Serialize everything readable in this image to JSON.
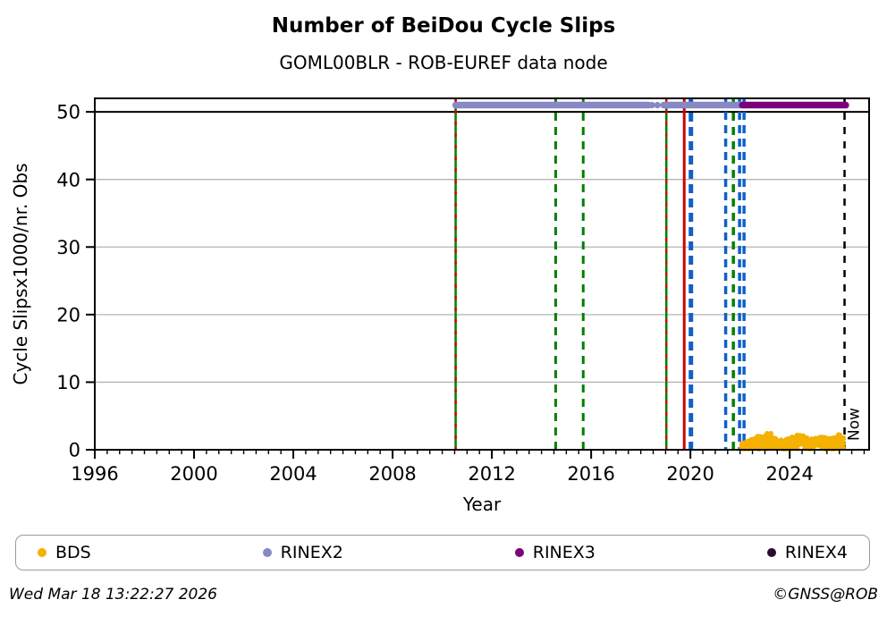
{
  "header": {
    "title": "Number of BeiDou Cycle Slips",
    "subtitle": "GOML00BLR - ROB-EUREF data node"
  },
  "footer": {
    "timestamp": "Wed Mar 18 13:22:27 2026",
    "credit": "©GNSS@ROB"
  },
  "legend": {
    "items": [
      {
        "label": "BDS",
        "color": "#f5b000"
      },
      {
        "label": "RINEX2",
        "color": "#8888c4"
      },
      {
        "label": "RINEX3",
        "color": "#7c017c"
      },
      {
        "label": "RINEX4",
        "color": "#2d0a31"
      }
    ]
  },
  "chart_data": {
    "type": "scatter",
    "title": "Number of BeiDou Cycle Slips",
    "subtitle": "GOML00BLR - ROB-EUREF data node",
    "xlabel": "Year",
    "ylabel": "Cycle Slipsx1000/nr. Obs",
    "xlim": [
      1996,
      2027.2
    ],
    "ylim": [
      0,
      52
    ],
    "xticks_major": [
      1996,
      2000,
      2004,
      2008,
      2012,
      2016,
      2020,
      2024
    ],
    "xtick_minor_step": 0.5,
    "yticks": [
      0,
      10,
      20,
      30,
      40,
      50
    ],
    "grid_color": "#b4b4b4",
    "cap_line_y": 50,
    "now": {
      "x": 2026.21,
      "label": "Now"
    },
    "series": [
      {
        "name": "BDS",
        "color": "#f5b000",
        "kind": "scatter-band",
        "x_start": 2022.05,
        "x_end": 2026.19,
        "y_min": 0.1,
        "n_points": 430,
        "envelope": [
          [
            2022.05,
            1.1
          ],
          [
            2022.5,
            1.6
          ],
          [
            2022.85,
            2.3
          ],
          [
            2023.2,
            2.6
          ],
          [
            2023.5,
            1.4
          ],
          [
            2023.8,
            1.6
          ],
          [
            2024.1,
            1.9
          ],
          [
            2024.45,
            2.4
          ],
          [
            2024.8,
            1.6
          ],
          [
            2025.1,
            1.9
          ],
          [
            2025.5,
            2.0
          ],
          [
            2025.8,
            1.8
          ],
          [
            2026.0,
            2.4
          ],
          [
            2026.19,
            2.0
          ]
        ]
      },
      {
        "name": "RINEX2",
        "color": "#8888c4",
        "kind": "line",
        "y": 51,
        "segments": [
          [
            2010.54,
            2018.31
          ],
          [
            2018.92,
            2022.02
          ]
        ],
        "dots": [
          2018.45,
          2018.67
        ]
      },
      {
        "name": "RINEX3",
        "color": "#7c017c",
        "kind": "line",
        "y": 51,
        "segments": [
          [
            2022.09,
            2026.26
          ]
        ],
        "dots": []
      },
      {
        "name": "RINEX4",
        "color": "#2d0a31",
        "kind": "line",
        "y": 51,
        "segments": [],
        "dots": []
      }
    ],
    "event_lines": [
      {
        "x": 2010.54,
        "color": "#008000",
        "style": "solid",
        "w": 2.5
      },
      {
        "x": 2010.54,
        "color": "#d40000",
        "style": "dashed",
        "w": 2.5,
        "dash": "4 9"
      },
      {
        "x": 2014.57,
        "color": "#008000",
        "style": "dashed",
        "w": 3,
        "dash": "9 7"
      },
      {
        "x": 2015.68,
        "color": "#008000",
        "style": "dashed",
        "w": 3,
        "dash": "9 7"
      },
      {
        "x": 2019.03,
        "color": "#008000",
        "style": "solid",
        "w": 2.5
      },
      {
        "x": 2019.03,
        "color": "#d40000",
        "style": "dashed",
        "w": 2.5,
        "dash": "4 9"
      },
      {
        "x": 2019.75,
        "color": "#d40000",
        "style": "solid",
        "w": 3
      },
      {
        "x": 2020.02,
        "color": "#1060c8",
        "style": "dashed",
        "w": 5,
        "dash": "10 6"
      },
      {
        "x": 2021.42,
        "color": "#1060c8",
        "style": "dashed",
        "w": 3.5,
        "dash": "9 6"
      },
      {
        "x": 2021.73,
        "color": "#008000",
        "style": "dashed",
        "w": 3.5,
        "dash": "9 7"
      },
      {
        "x": 2021.98,
        "color": "#1060c8",
        "style": "dashed",
        "w": 3.5,
        "dash": "9 6"
      },
      {
        "x": 2022.16,
        "color": "#1060c8",
        "style": "dashed",
        "w": 3.5,
        "dash": "9 6"
      },
      {
        "x": 2026.21,
        "color": "#000000",
        "style": "dashed",
        "w": 2.5,
        "dash": "8 8"
      }
    ]
  }
}
